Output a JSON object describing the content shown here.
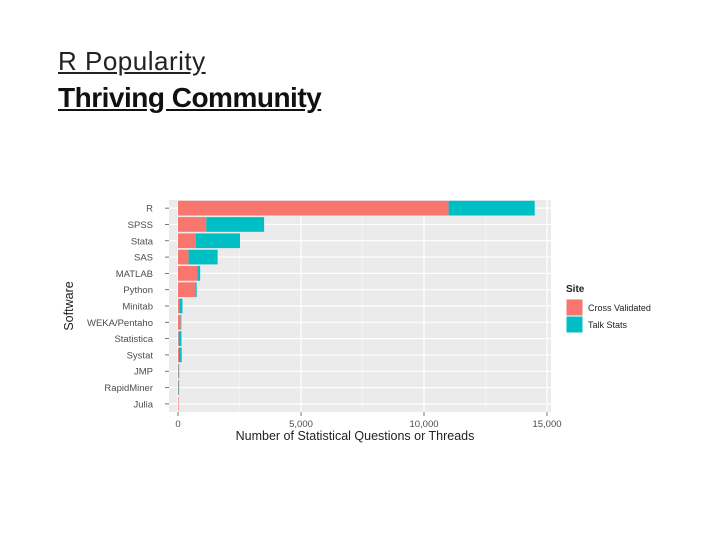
{
  "slide": {
    "title": "R Popularity",
    "subtitle": "Thriving Community"
  },
  "chart_data": {
    "type": "bar",
    "orientation": "horizontal",
    "stacked": true,
    "title": "",
    "xlabel": "Number of Statistical Questions or Threads",
    "ylabel": "Software",
    "xlim": [
      0,
      15000
    ],
    "xticks": [
      0,
      5000,
      10000,
      15000
    ],
    "xtick_labels": [
      "0",
      "5,000",
      "10,000",
      "15,000"
    ],
    "grid": true,
    "legend_position": "right",
    "legend_title": "Site",
    "categories": [
      "R",
      "SPSS",
      "Stata",
      "SAS",
      "MATLAB",
      "Python",
      "Minitab",
      "WEKA/Pentaho",
      "Statistica",
      "Systat",
      "JMP",
      "RapidMiner",
      "Julia"
    ],
    "series": [
      {
        "name": "Cross Validated",
        "color": "#f8766d",
        "values": [
          11000,
          1150,
          720,
          430,
          780,
          700,
          50,
          110,
          30,
          40,
          25,
          20,
          10
        ]
      },
      {
        "name": "Talk Stats",
        "color": "#00bfc4",
        "values": [
          3500,
          2350,
          1800,
          1180,
          120,
          60,
          130,
          20,
          110,
          110,
          5,
          5,
          0
        ]
      }
    ]
  }
}
